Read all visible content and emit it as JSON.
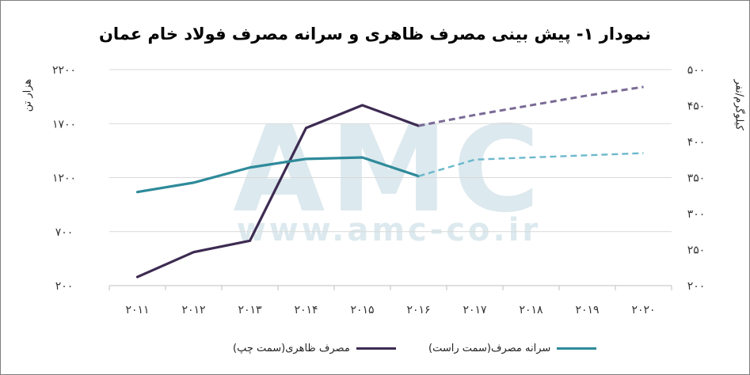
{
  "title": "نمودار ۱- پیش بینی مصرف ظاهری و سرانه مصرف فولاد خام عمان",
  "watermark": {
    "logo": "AMC",
    "url": "www.amc-co.ir"
  },
  "colors": {
    "apparent": "#3d2b52",
    "apparent_forecast": "#7a6a96",
    "percapita": "#2e8a9a",
    "percapita_forecast": "#6cb8cc",
    "grid": "#d9d9d9",
    "watermark": "#dce9ee"
  },
  "chart_data": {
    "type": "line",
    "title": "نمودار ۱- پیش بینی مصرف ظاهری و سرانه مصرف فولاد خام عمان",
    "categories": [
      "۲۰۱۱",
      "۲۰۱۲",
      "۲۰۱۳",
      "۲۰۱۴",
      "۲۰۱۵",
      "۲۰۱۶",
      "۲۰۱۷",
      "۲۰۱۸",
      "۲۰۱۹",
      "۲۰۲۰"
    ],
    "years": [
      2011,
      2012,
      2013,
      2014,
      2015,
      2016,
      2017,
      2018,
      2019,
      2020
    ],
    "ylabel_left": "هزار تن",
    "ylabel_right": "کیلوگرم/نفر",
    "y_left": {
      "min": 200,
      "max": 2200,
      "ticks": [
        200,
        700,
        1200,
        1700,
        2200
      ],
      "tick_labels": [
        "۲۰۰",
        "۷۰۰",
        "۱۲۰۰",
        "۱۷۰۰",
        "۲۲۰۰"
      ]
    },
    "y_right": {
      "min": 200,
      "max": 500,
      "ticks": [
        200,
        250,
        300,
        350,
        400,
        450,
        500
      ],
      "tick_labels": [
        "۲۰۰",
        "۲۵۰",
        "۳۰۰",
        "۳۵۰",
        "۴۰۰",
        "۴۵۰",
        "۵۰۰"
      ]
    },
    "grid": true,
    "legend_position": "bottom",
    "series": [
      {
        "name": "مصرف ظاهری(سمت چپ)",
        "axis": "left",
        "values": [
          280,
          510,
          615,
          1660,
          1870,
          1680,
          1780,
          1870,
          1960,
          2040
        ],
        "forecast_from": 5
      },
      {
        "name": "سرانه مصرف(سمت راست)",
        "axis": "right",
        "values": [
          330,
          343,
          364,
          376,
          378,
          352,
          375,
          378,
          381,
          384
        ],
        "forecast_from": 5
      }
    ]
  }
}
